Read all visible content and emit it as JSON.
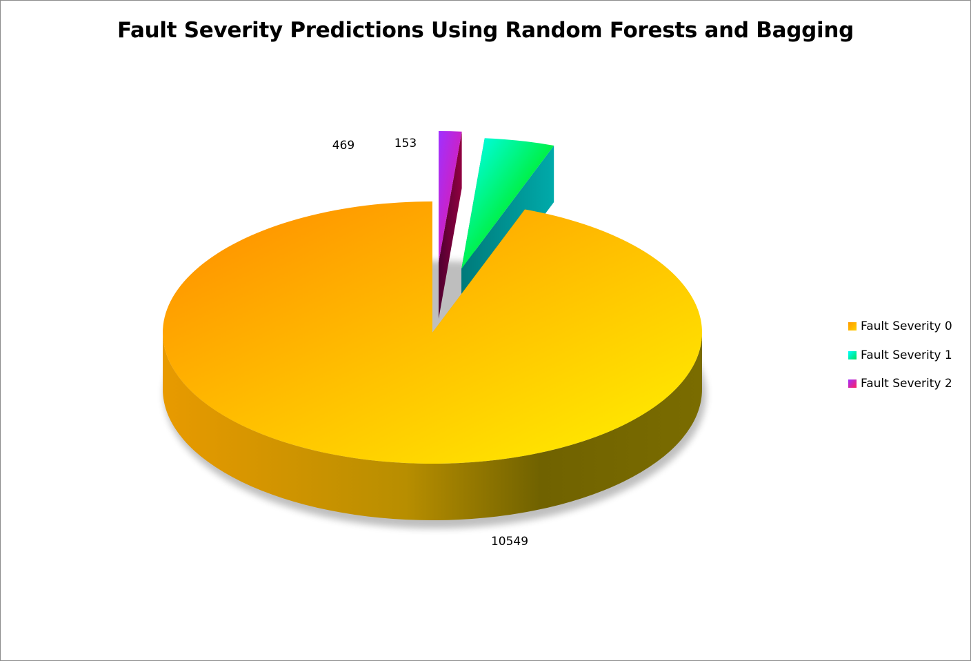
{
  "chart_data": {
    "type": "pie",
    "title": "Fault Severity Predictions Using Random Forests and Bagging",
    "categories": [
      "Fault Severity 0",
      "Fault Severity 1",
      "Fault Severity 2"
    ],
    "values": [
      10549,
      469,
      153
    ],
    "data_labels": [
      "10549",
      "469",
      "153"
    ],
    "exploded": [
      false,
      true,
      true
    ],
    "legend_position": "right",
    "style": "3d",
    "colors": {
      "Fault Severity 0": "#ffb000",
      "Fault Severity 1": "#00f0e0",
      "Fault Severity 2": "#c020d0"
    }
  }
}
